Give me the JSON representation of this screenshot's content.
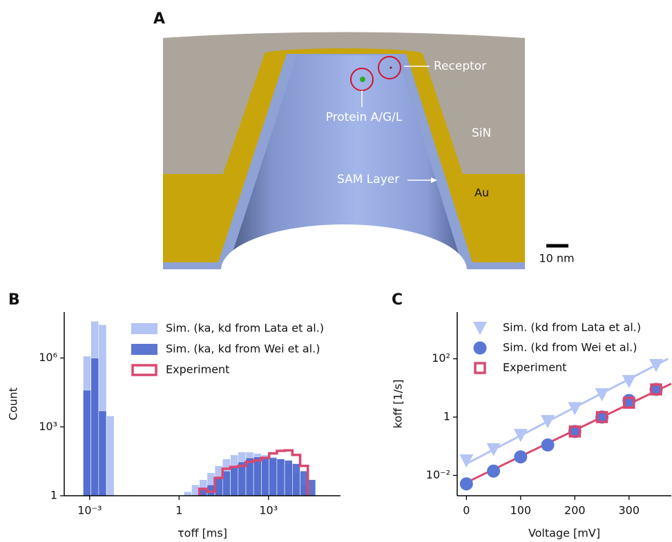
{
  "panel_a": {
    "label": "A",
    "receptor": "Receptor",
    "protein": "Protein A/G/L",
    "sin": "SiN",
    "sam": "SAM Layer",
    "au": "Au",
    "scale_bar": "10 nm"
  },
  "chart_data": [
    {
      "type": "histogram",
      "panel_label": "B",
      "x_label": "τoff [ms]",
      "y_label": "Count",
      "xscale": "log",
      "yscale": "log",
      "grid": false,
      "legend": "upper left",
      "xlim": [
        0.00014,
        260000
      ],
      "xticks": [
        {
          "value": 0.001,
          "label": "10⁻³"
        },
        1,
        {
          "value": 1000,
          "label": "10³"
        }
      ],
      "ylim": [
        1,
        100000000
      ],
      "yticks": [
        1,
        {
          "value": 1000,
          "label": "10³"
        },
        {
          "value": 1000000,
          "label": "10⁶"
        }
      ],
      "bins": [
        0.000603,
        0.0011,
        0.002,
        0.00363,
        0.00661,
        0.012,
        0.0219,
        0.0398,
        0.0724,
        0.132,
        0.24,
        0.437,
        0.794,
        1.45,
        2.63,
        4.79,
        8.71,
        15.8,
        28.8,
        52.5,
        95.5,
        174,
        316,
        575,
        1050,
        1910,
        3470,
        6310,
        11500,
        20900,
        38000
      ],
      "series": [
        {
          "name": "Sim. (ka, kd from Lata et al.)",
          "color": "#b3c4f5",
          "histtype": "bar",
          "values": [
            1200000,
            40000000,
            28000000,
            3000,
            0,
            0,
            0,
            0,
            0,
            0,
            0,
            0,
            0,
            1.5,
            3,
            5,
            10,
            20,
            40,
            60,
            80,
            80,
            70,
            60,
            50,
            40,
            25,
            10,
            3,
            0
          ]
        },
        {
          "name": "Sim. (ka, kd from Wei et al.)",
          "color": "#4a66cc",
          "histtype": "bar",
          "values": [
            40000,
            1000000,
            5000,
            0,
            0,
            0,
            0,
            0,
            0,
            0,
            0,
            0,
            0,
            0,
            0,
            2,
            3,
            6,
            12,
            20,
            30,
            45,
            50,
            50,
            45,
            40,
            35,
            25,
            12,
            5
          ]
        },
        {
          "name": "Experiment",
          "color": "#d9486e",
          "histtype": "step",
          "values": [
            0,
            0,
            0,
            0,
            0,
            0,
            0,
            0,
            0,
            0,
            0,
            0,
            0,
            0,
            0,
            2,
            1.5,
            6,
            15,
            18,
            20,
            30,
            35,
            45,
            70,
            90,
            95,
            60,
            20,
            0
          ]
        }
      ]
    },
    {
      "type": "scatter",
      "panel_label": "C",
      "x_label": "Voltage [mV]",
      "y_label": "koff [1/s]",
      "xscale": "linear",
      "yscale": "log",
      "grid": false,
      "legend": "upper left",
      "xlim": [
        -17,
        378
      ],
      "xticks": [
        0,
        100,
        200,
        300
      ],
      "ylim": [
        0.002,
        4000
      ],
      "yticks": [
        {
          "value": 0.01,
          "label": "10⁻²"
        },
        1,
        {
          "value": 100,
          "label": "10²"
        }
      ],
      "fits": [
        {
          "color": "#b3c4f5",
          "x": [
            0,
            372
          ],
          "values": [
            0.025,
            100
          ]
        },
        {
          "color": "#d9486e",
          "x": [
            0,
            378
          ],
          "values": [
            0.0057,
            14
          ]
        }
      ],
      "series": [
        {
          "name": "Sim. (kd from Lata et al.)",
          "color": "#b3c4f5",
          "marker": "triangle",
          "x": [
            0,
            50,
            100,
            150,
            200,
            250,
            300,
            350
          ],
          "values": [
            0.032,
            0.078,
            0.24,
            0.72,
            2.0,
            6,
            17,
            60
          ]
        },
        {
          "name": "Sim. (kd from Wei et al.)",
          "color": "#5a77d6",
          "marker": "circle",
          "x": [
            0,
            50,
            100,
            150,
            200,
            250,
            300,
            350
          ],
          "values": [
            0.0051,
            0.014,
            0.043,
            0.11,
            0.32,
            1.0,
            3.7,
            8.9
          ]
        },
        {
          "name": "Experiment",
          "color": "#d9486e",
          "marker": "square",
          "x": [
            200,
            250,
            300,
            350
          ],
          "values": [
            0.32,
            1.0,
            3.1,
            8.9
          ]
        }
      ]
    }
  ]
}
